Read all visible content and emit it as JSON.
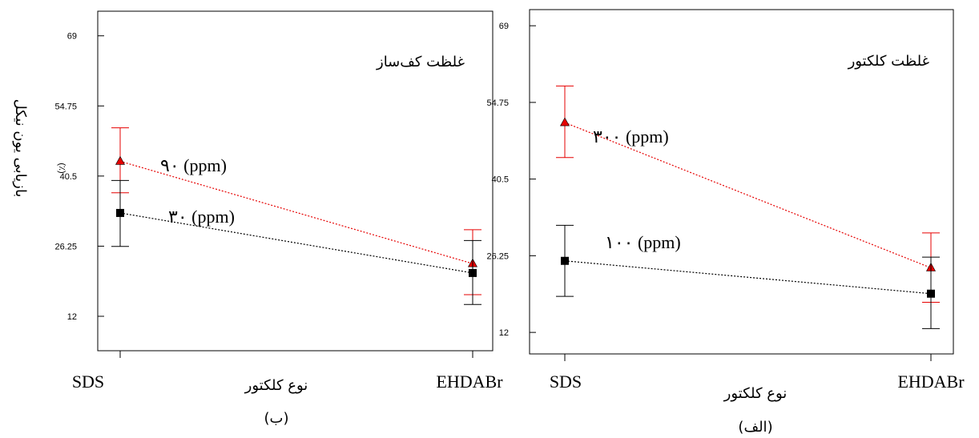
{
  "figure": {
    "shared_ylabel": "بازیابی یون نیکل",
    "shared_yunit": "(٪)"
  },
  "colors": {
    "high_series": "#e60000",
    "low_series": "#000000",
    "axis": "#000000"
  },
  "chart_data": [
    {
      "type": "line",
      "panel_id": "b",
      "title": "غلظت کف‌ساز",
      "xlabel": "نوع کلکتور",
      "caption": "(ب)",
      "categories": [
        "SDS",
        "EHDABr"
      ],
      "yticks": [
        "12",
        "26.25",
        "40.5",
        "54.75",
        "69"
      ],
      "ylim": [
        5,
        74
      ],
      "series": [
        {
          "name": "۹۰ (ppm)",
          "color": "#e60000",
          "marker": "triangle",
          "values": [
            43.5,
            22.7
          ],
          "error_low": [
            37.1,
            16.4
          ],
          "error_high": [
            50.3,
            29.6
          ]
        },
        {
          "name": "۳۰ (ppm)",
          "color": "#000000",
          "marker": "square",
          "values": [
            33.0,
            20.8
          ],
          "error_low": [
            26.2,
            14.4
          ],
          "error_high": [
            39.6,
            27.4
          ]
        }
      ]
    },
    {
      "type": "line",
      "panel_id": "الف",
      "title": "غلظت کلکتور",
      "xlabel": "نوع کلکتور",
      "caption": "(الف)",
      "categories": [
        "SDS",
        "EHDABr"
      ],
      "yticks": [
        "12",
        "26.25",
        "40.5",
        "54.75",
        "69"
      ],
      "ylim": [
        8,
        72
      ],
      "series": [
        {
          "name": "۳۰۰ (ppm)",
          "color": "#e60000",
          "marker": "triangle",
          "values": [
            51.0,
            24.0
          ],
          "error_low": [
            44.5,
            17.6
          ],
          "error_high": [
            57.8,
            30.5
          ]
        },
        {
          "name": "۱۰۰ (ppm)",
          "color": "#000000",
          "marker": "square",
          "values": [
            25.3,
            19.2
          ],
          "error_low": [
            18.7,
            12.7
          ],
          "error_high": [
            31.9,
            26.0
          ]
        }
      ]
    }
  ]
}
